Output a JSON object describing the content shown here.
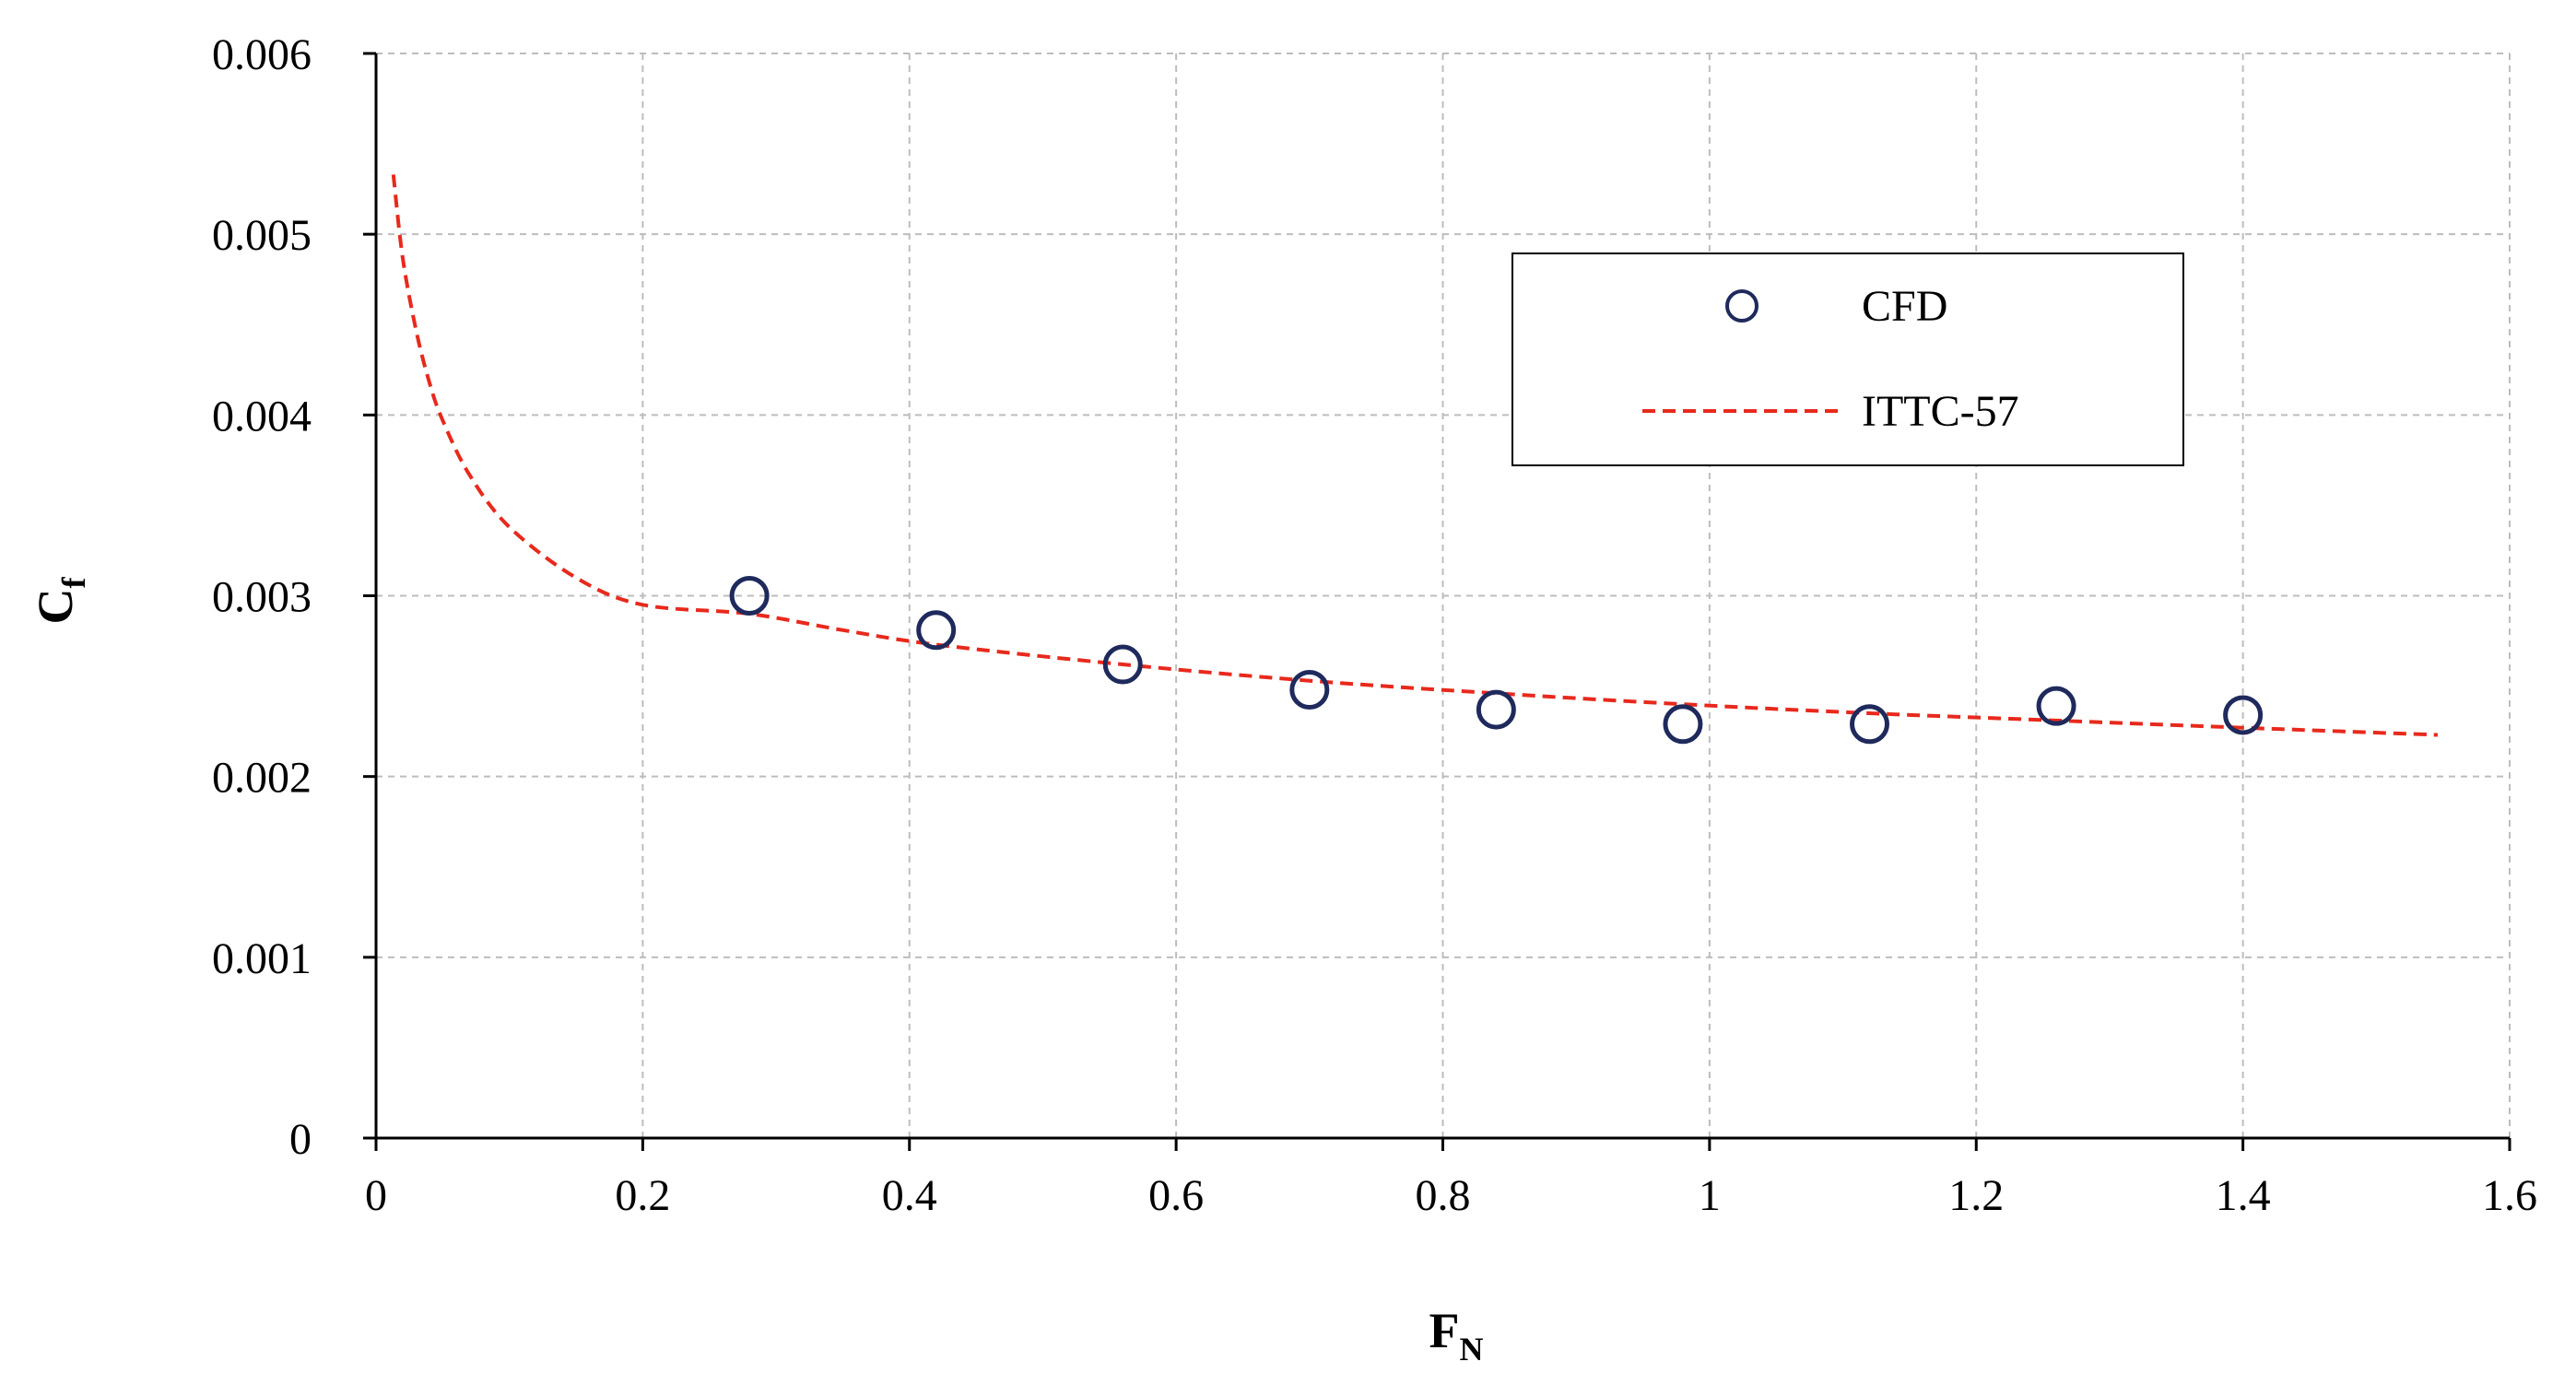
{
  "chart_data": {
    "type": "scatter",
    "title": "",
    "xlabel": {
      "main": "F",
      "sub": "N"
    },
    "ylabel": {
      "main": "C",
      "sub": "f"
    },
    "xlim": [
      0,
      1.6
    ],
    "ylim": [
      0,
      0.006
    ],
    "xticks": [
      0,
      0.2,
      0.4,
      0.6,
      0.8,
      1,
      1.2,
      1.4,
      1.6
    ],
    "xtick_labels": [
      "0",
      "0.2",
      "0.4",
      "0.6",
      "0.8",
      "1",
      "1.2",
      "1.4",
      "1.6"
    ],
    "yticks": [
      0,
      0.001,
      0.002,
      0.003,
      0.004,
      0.005,
      0.006
    ],
    "ytick_labels": [
      "0",
      "0.001",
      "0.002",
      "0.003",
      "0.004",
      "0.005",
      "0.006"
    ],
    "grid": true,
    "legend_position": "top-right",
    "series": [
      {
        "name": "CFD",
        "kind": "scatter",
        "marker": "open-circle",
        "color": "#1f2a5c",
        "x": [
          0.28,
          0.42,
          0.56,
          0.7,
          0.84,
          0.98,
          1.12,
          1.26,
          1.4
        ],
        "y": [
          0.003,
          0.00281,
          0.00262,
          0.00248,
          0.00237,
          0.00229,
          0.00229,
          0.00239,
          0.00234
        ]
      },
      {
        "name": "ITTC-57",
        "kind": "line",
        "style": "dashed",
        "color": "#e8291c",
        "x": [
          0.013,
          0.02,
          0.03,
          0.04,
          0.05,
          0.07,
          0.1,
          0.15,
          0.2,
          0.28,
          0.35,
          0.42,
          0.56,
          0.7,
          0.84,
          0.98,
          1.12,
          1.26,
          1.4,
          1.546
        ],
        "y": [
          0.00533,
          0.00487,
          0.00447,
          0.00418,
          0.00397,
          0.00367,
          0.00338,
          0.0031,
          0.00295,
          0.0029,
          0.00281,
          0.00273,
          0.00262,
          0.00253,
          0.00246,
          0.0024,
          0.00235,
          0.00231,
          0.00227,
          0.00223
        ]
      }
    ]
  }
}
